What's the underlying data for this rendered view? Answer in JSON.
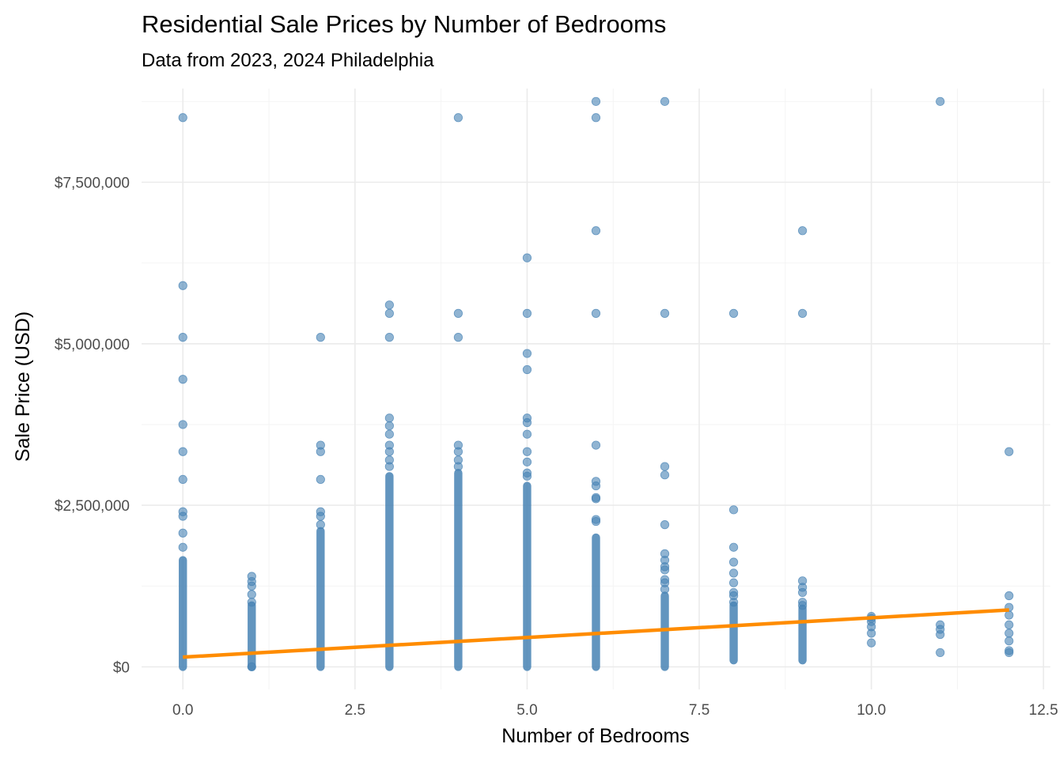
{
  "chart_data": {
    "type": "scatter",
    "title": "Residential Sale Prices by Number of Bedrooms",
    "subtitle": "Data from 2023, 2024 Philadelphia",
    "xlabel": "Number of Bedrooms",
    "ylabel": "Sale Price (USD)",
    "xlim": [
      -0.6,
      12.6
    ],
    "ylim": [
      -350000,
      8950000
    ],
    "x_ticks": [
      0,
      2.5,
      5,
      7.5,
      10,
      12.5
    ],
    "x_tick_labels": [
      "0.0",
      "2.5",
      "5.0",
      "7.5",
      "10.0",
      "12.5"
    ],
    "y_ticks": [
      0,
      2500000,
      5000000,
      7500000
    ],
    "y_tick_labels": [
      "$0",
      "$2,500,000",
      "$5,000,000",
      "$7,500,000"
    ],
    "grid": true,
    "legend": "none",
    "point_color": "#4682b4",
    "trend_color": "#ff8c00",
    "dense_ranges": [
      {
        "x": 0,
        "y_min": 0,
        "y_max": 1650000
      },
      {
        "x": 1,
        "y_min": 0,
        "y_max": 950000
      },
      {
        "x": 2,
        "y_min": 0,
        "y_max": 2100000
      },
      {
        "x": 3,
        "y_min": 0,
        "y_max": 2950000
      },
      {
        "x": 4,
        "y_min": 0,
        "y_max": 3000000
      },
      {
        "x": 5,
        "y_min": 0,
        "y_max": 2800000
      },
      {
        "x": 6,
        "y_min": 0,
        "y_max": 2000000
      },
      {
        "x": 7,
        "y_min": 0,
        "y_max": 1100000
      },
      {
        "x": 8,
        "y_min": 100000,
        "y_max": 950000
      },
      {
        "x": 9,
        "y_min": 100000,
        "y_max": 900000
      }
    ],
    "points": [
      {
        "x": 0,
        "y": 8500000
      },
      {
        "x": 0,
        "y": 5900000
      },
      {
        "x": 0,
        "y": 5100000
      },
      {
        "x": 0,
        "y": 4450000
      },
      {
        "x": 0,
        "y": 3750000
      },
      {
        "x": 0,
        "y": 3330000
      },
      {
        "x": 0,
        "y": 2900000
      },
      {
        "x": 0,
        "y": 2400000
      },
      {
        "x": 0,
        "y": 2330000
      },
      {
        "x": 0,
        "y": 2070000
      },
      {
        "x": 0,
        "y": 1850000
      },
      {
        "x": 1,
        "y": 1400000
      },
      {
        "x": 1,
        "y": 1320000
      },
      {
        "x": 1,
        "y": 1250000
      },
      {
        "x": 1,
        "y": 1120000
      },
      {
        "x": 1,
        "y": 1000000
      },
      {
        "x": 1,
        "y": 0
      },
      {
        "x": 2,
        "y": 5100000
      },
      {
        "x": 2,
        "y": 3430000
      },
      {
        "x": 2,
        "y": 3330000
      },
      {
        "x": 2,
        "y": 2900000
      },
      {
        "x": 2,
        "y": 2400000
      },
      {
        "x": 2,
        "y": 2330000
      },
      {
        "x": 2,
        "y": 2200000
      },
      {
        "x": 3,
        "y": 5600000
      },
      {
        "x": 3,
        "y": 5470000
      },
      {
        "x": 3,
        "y": 5100000
      },
      {
        "x": 3,
        "y": 3850000
      },
      {
        "x": 3,
        "y": 3730000
      },
      {
        "x": 3,
        "y": 3600000
      },
      {
        "x": 3,
        "y": 3430000
      },
      {
        "x": 3,
        "y": 3330000
      },
      {
        "x": 3,
        "y": 3200000
      },
      {
        "x": 3,
        "y": 3100000
      },
      {
        "x": 4,
        "y": 8500000
      },
      {
        "x": 4,
        "y": 5470000
      },
      {
        "x": 4,
        "y": 5100000
      },
      {
        "x": 4,
        "y": 3430000
      },
      {
        "x": 4,
        "y": 3330000
      },
      {
        "x": 4,
        "y": 3200000
      },
      {
        "x": 4,
        "y": 3100000
      },
      {
        "x": 5,
        "y": 6330000
      },
      {
        "x": 5,
        "y": 5470000
      },
      {
        "x": 5,
        "y": 4850000
      },
      {
        "x": 5,
        "y": 4600000
      },
      {
        "x": 5,
        "y": 3850000
      },
      {
        "x": 5,
        "y": 3780000
      },
      {
        "x": 5,
        "y": 3600000
      },
      {
        "x": 5,
        "y": 3330000
      },
      {
        "x": 5,
        "y": 3170000
      },
      {
        "x": 5,
        "y": 3000000
      },
      {
        "x": 5,
        "y": 2950000
      },
      {
        "x": 6,
        "y": 8750000
      },
      {
        "x": 6,
        "y": 8500000
      },
      {
        "x": 6,
        "y": 6750000
      },
      {
        "x": 6,
        "y": 5470000
      },
      {
        "x": 6,
        "y": 3430000
      },
      {
        "x": 6,
        "y": 2870000
      },
      {
        "x": 6,
        "y": 2800000
      },
      {
        "x": 6,
        "y": 2620000
      },
      {
        "x": 6,
        "y": 2600000
      },
      {
        "x": 6,
        "y": 2280000
      },
      {
        "x": 6,
        "y": 2250000
      },
      {
        "x": 7,
        "y": 8750000
      },
      {
        "x": 7,
        "y": 5470000
      },
      {
        "x": 7,
        "y": 3100000
      },
      {
        "x": 7,
        "y": 2970000
      },
      {
        "x": 7,
        "y": 2200000
      },
      {
        "x": 7,
        "y": 1750000
      },
      {
        "x": 7,
        "y": 1650000
      },
      {
        "x": 7,
        "y": 1550000
      },
      {
        "x": 7,
        "y": 1500000
      },
      {
        "x": 7,
        "y": 1350000
      },
      {
        "x": 7,
        "y": 1300000
      },
      {
        "x": 7,
        "y": 1200000
      },
      {
        "x": 8,
        "y": 5470000
      },
      {
        "x": 8,
        "y": 2430000
      },
      {
        "x": 8,
        "y": 1850000
      },
      {
        "x": 8,
        "y": 1620000
      },
      {
        "x": 8,
        "y": 1450000
      },
      {
        "x": 8,
        "y": 1300000
      },
      {
        "x": 8,
        "y": 1150000
      },
      {
        "x": 8,
        "y": 1100000
      },
      {
        "x": 8,
        "y": 1000000
      },
      {
        "x": 9,
        "y": 6750000
      },
      {
        "x": 9,
        "y": 5470000
      },
      {
        "x": 9,
        "y": 1330000
      },
      {
        "x": 9,
        "y": 1230000
      },
      {
        "x": 9,
        "y": 1150000
      },
      {
        "x": 9,
        "y": 1000000
      },
      {
        "x": 9,
        "y": 950000
      },
      {
        "x": 10,
        "y": 780000
      },
      {
        "x": 10,
        "y": 750000
      },
      {
        "x": 10,
        "y": 700000
      },
      {
        "x": 10,
        "y": 620000
      },
      {
        "x": 10,
        "y": 520000
      },
      {
        "x": 10,
        "y": 370000
      },
      {
        "x": 11,
        "y": 8750000
      },
      {
        "x": 11,
        "y": 650000
      },
      {
        "x": 11,
        "y": 580000
      },
      {
        "x": 11,
        "y": 500000
      },
      {
        "x": 11,
        "y": 220000
      },
      {
        "x": 12,
        "y": 3330000
      },
      {
        "x": 12,
        "y": 1100000
      },
      {
        "x": 12,
        "y": 920000
      },
      {
        "x": 12,
        "y": 800000
      },
      {
        "x": 12,
        "y": 650000
      },
      {
        "x": 12,
        "y": 520000
      },
      {
        "x": 12,
        "y": 400000
      },
      {
        "x": 12,
        "y": 250000
      },
      {
        "x": 12,
        "y": 220000
      }
    ],
    "trend_line": {
      "x": [
        0,
        12
      ],
      "y": [
        150000,
        880000
      ]
    }
  }
}
